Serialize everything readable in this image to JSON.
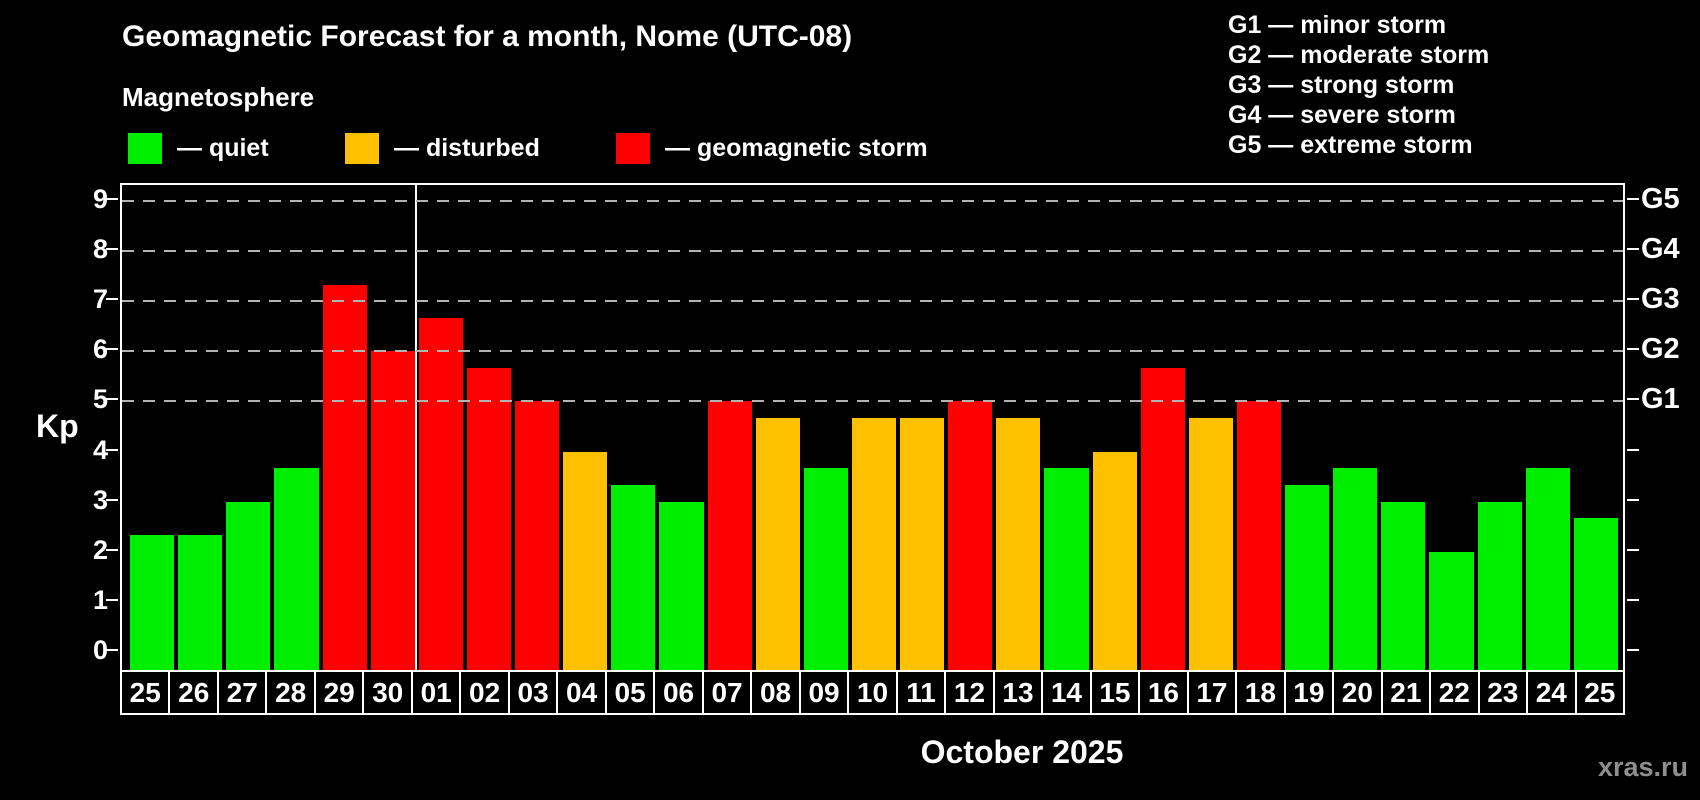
{
  "header": {
    "title": "Geomagnetic Forecast for a month, Nome (UTC-08)",
    "subtitle": "Magnetosphere",
    "watermark": "xras.ru"
  },
  "colors": {
    "quiet": "#00ee00",
    "disturbed": "#ffc000",
    "storm": "#ff0000",
    "background": "#000000",
    "axis": "#ffffff",
    "gridline": "#b3b3b3",
    "watermark_text": "#8f8f8f"
  },
  "legend": {
    "items": [
      {
        "key": "quiet",
        "label": "— quiet"
      },
      {
        "key": "disturbed",
        "label": "— disturbed"
      },
      {
        "key": "storm",
        "label": "— geomagnetic storm"
      }
    ]
  },
  "g_legend": [
    "G1 — minor storm",
    "G2 — moderate storm",
    "G3 — strong storm",
    "G4 — severe storm",
    "G5 — extreme storm"
  ],
  "chart_data": {
    "type": "bar",
    "title": "Geomagnetic Forecast for a month, Nome (UTC-08)",
    "ylabel": "Kp",
    "xlabel": "October 2025",
    "ylim": [
      0,
      9
    ],
    "y_ticks": [
      0,
      1,
      2,
      3,
      4,
      5,
      6,
      7,
      8,
      9
    ],
    "gridlines_at_kp": [
      5,
      6,
      7,
      8,
      9
    ],
    "grid": "dashed, only at Kp 5-9",
    "legend_position": "top",
    "right_axis": [
      {
        "kp": 5,
        "label": "G1"
      },
      {
        "kp": 6,
        "label": "G2"
      },
      {
        "kp": 7,
        "label": "G3"
      },
      {
        "kp": 8,
        "label": "G4"
      },
      {
        "kp": 9,
        "label": "G5"
      }
    ],
    "month_separator_after_index": 5,
    "bars": [
      {
        "day": "25",
        "kp": 2.33,
        "level": "quiet"
      },
      {
        "day": "26",
        "kp": 2.33,
        "level": "quiet"
      },
      {
        "day": "27",
        "kp": 3.0,
        "level": "quiet"
      },
      {
        "day": "28",
        "kp": 3.67,
        "level": "quiet"
      },
      {
        "day": "29",
        "kp": 7.33,
        "level": "storm"
      },
      {
        "day": "30",
        "kp": 6.0,
        "level": "storm"
      },
      {
        "day": "01",
        "kp": 6.67,
        "level": "storm"
      },
      {
        "day": "02",
        "kp": 5.67,
        "level": "storm"
      },
      {
        "day": "03",
        "kp": 5.0,
        "level": "storm"
      },
      {
        "day": "04",
        "kp": 4.0,
        "level": "disturbed"
      },
      {
        "day": "05",
        "kp": 3.33,
        "level": "quiet"
      },
      {
        "day": "06",
        "kp": 3.0,
        "level": "quiet"
      },
      {
        "day": "07",
        "kp": 5.0,
        "level": "storm"
      },
      {
        "day": "08",
        "kp": 4.67,
        "level": "disturbed"
      },
      {
        "day": "09",
        "kp": 3.67,
        "level": "quiet"
      },
      {
        "day": "10",
        "kp": 4.67,
        "level": "disturbed"
      },
      {
        "day": "11",
        "kp": 4.67,
        "level": "disturbed"
      },
      {
        "day": "12",
        "kp": 5.0,
        "level": "storm"
      },
      {
        "day": "13",
        "kp": 4.67,
        "level": "disturbed"
      },
      {
        "day": "14",
        "kp": 3.67,
        "level": "quiet"
      },
      {
        "day": "15",
        "kp": 4.0,
        "level": "disturbed"
      },
      {
        "day": "16",
        "kp": 5.67,
        "level": "storm"
      },
      {
        "day": "17",
        "kp": 4.67,
        "level": "disturbed"
      },
      {
        "day": "18",
        "kp": 5.0,
        "level": "storm"
      },
      {
        "day": "19",
        "kp": 3.33,
        "level": "quiet"
      },
      {
        "day": "20",
        "kp": 3.67,
        "level": "quiet"
      },
      {
        "day": "21",
        "kp": 3.0,
        "level": "quiet"
      },
      {
        "day": "22",
        "kp": 2.0,
        "level": "quiet"
      },
      {
        "day": "23",
        "kp": 3.0,
        "level": "quiet"
      },
      {
        "day": "24",
        "kp": 3.67,
        "level": "quiet"
      },
      {
        "day": "25",
        "kp": 2.67,
        "level": "quiet"
      }
    ]
  }
}
